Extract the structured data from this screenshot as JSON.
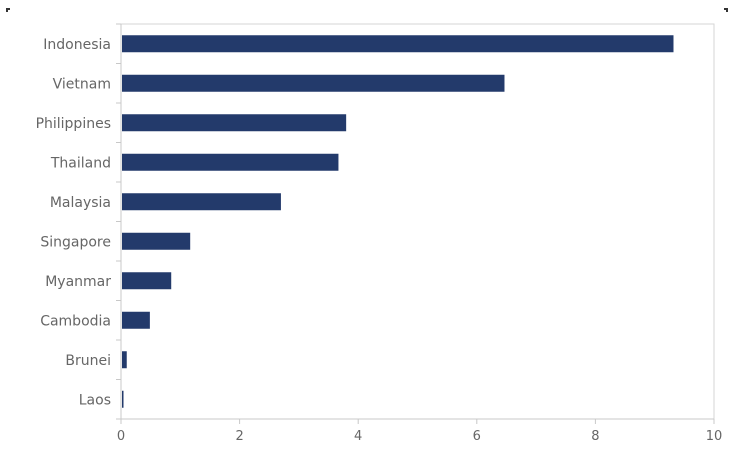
{
  "chart_data": {
    "type": "bar",
    "orientation": "horizontal",
    "title": "",
    "xlabel": "",
    "ylabel": "",
    "categories": [
      "Indonesia",
      "Vietnam",
      "Philippines",
      "Thailand",
      "Malaysia",
      "Singapore",
      "Myanmar",
      "Cambodia",
      "Brunei",
      "Laos"
    ],
    "values": [
      9.3,
      6.45,
      3.78,
      3.65,
      2.68,
      1.15,
      0.83,
      0.47,
      0.08,
      0.02
    ],
    "xlim": [
      0,
      10
    ],
    "xticks": [
      "0",
      "2",
      "4",
      "6",
      "8",
      "10"
    ],
    "bar_color": "#233a6b",
    "grid": false,
    "legend": "none"
  }
}
